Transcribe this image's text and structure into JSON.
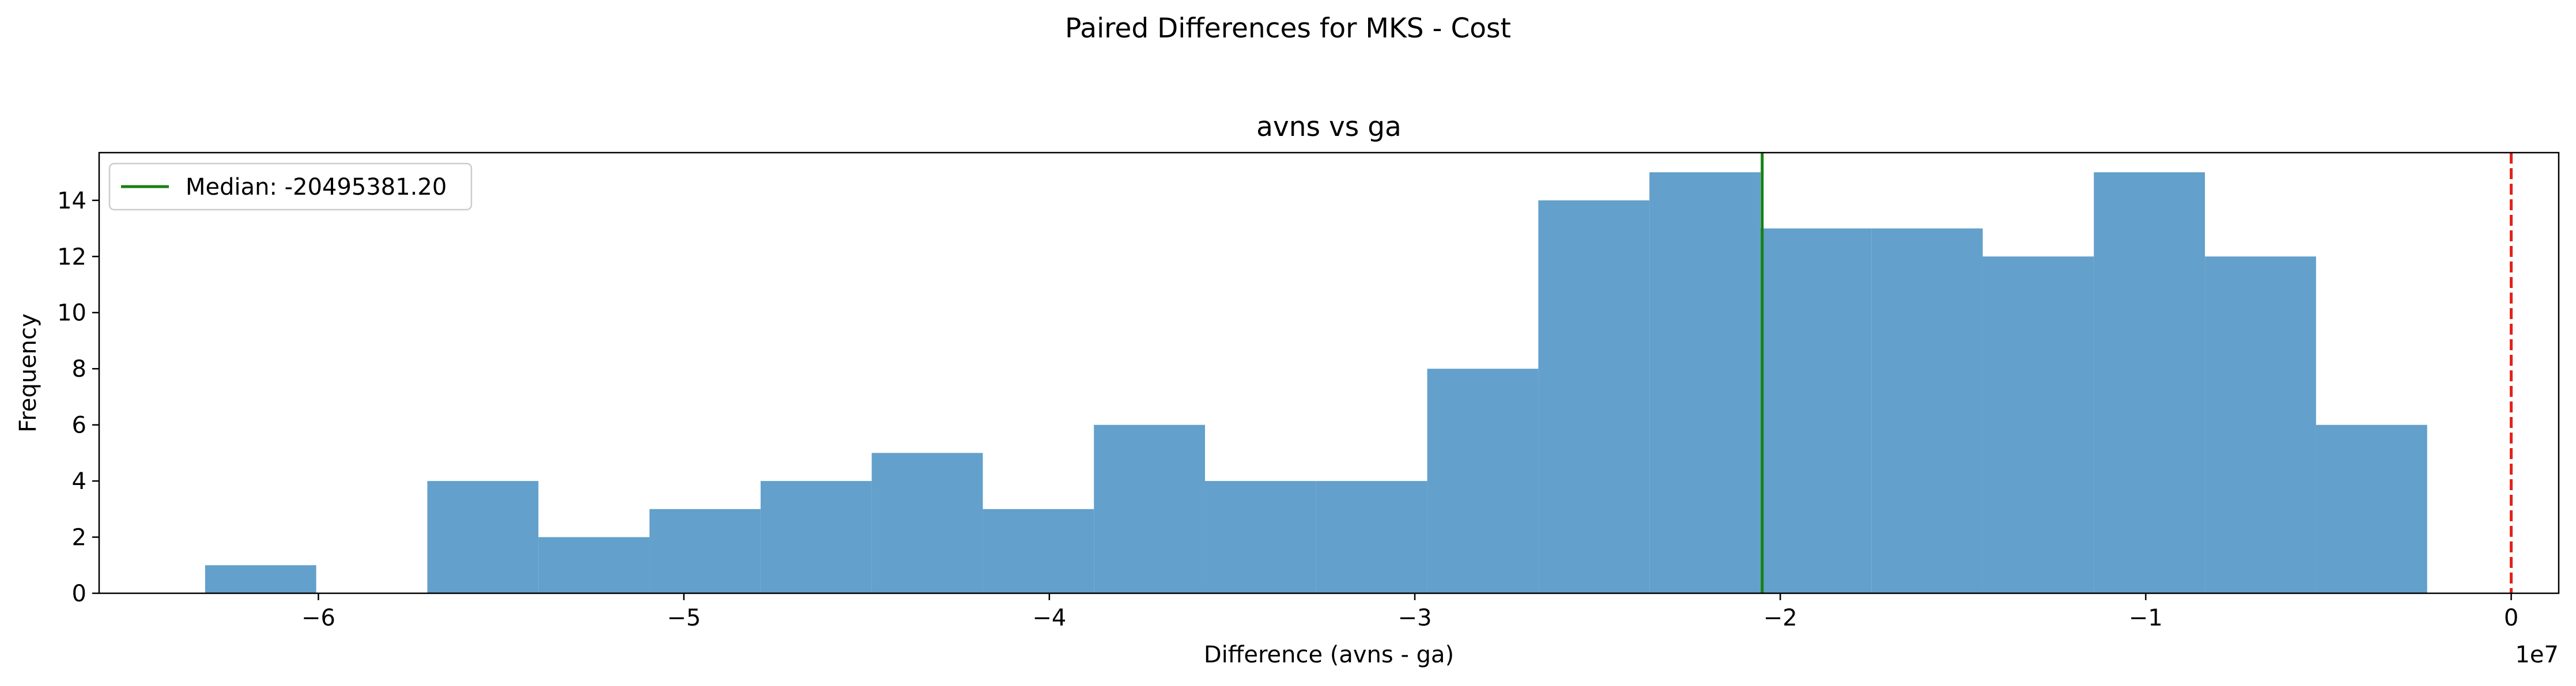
{
  "figure": {
    "suptitle": "Paired Differences for MKS - Cost"
  },
  "chart_data": {
    "type": "bar",
    "subtype": "histogram",
    "title": "avns vs ga",
    "xlabel": "Difference (avns - ga)",
    "ylabel": "Frequency",
    "x_scale_label": "1e7",
    "xlim": [
      -6.6,
      0.13
    ],
    "ylim": [
      0,
      15.7
    ],
    "xticks": [
      -6,
      -5,
      -4,
      -3,
      -2,
      -1,
      0
    ],
    "xtick_labels": [
      "−6",
      "−5",
      "−4",
      "−3",
      "−2",
      "−1",
      "0"
    ],
    "yticks": [
      0,
      2,
      4,
      6,
      8,
      10,
      12,
      14
    ],
    "ytick_labels": [
      "0",
      "2",
      "4",
      "6",
      "8",
      "10",
      "12",
      "14"
    ],
    "bin_edges": [
      -6.31,
      -6.006,
      -5.702,
      -5.398,
      -5.094,
      -4.79,
      -4.486,
      -4.182,
      -3.878,
      -3.574,
      -3.27,
      -2.966,
      -2.662,
      -2.358,
      -2.054,
      -1.75,
      -1.446,
      -1.142,
      -0.838,
      -0.534,
      -0.23
    ],
    "values": [
      1,
      0,
      4,
      2,
      3,
      4,
      5,
      3,
      6,
      4,
      4,
      8,
      14,
      15,
      13,
      13,
      12,
      15,
      12,
      6
    ],
    "bar_color": "#63a0cb",
    "median": {
      "value": -2.0495,
      "label": "Median: -20495381.20",
      "color": "#178016"
    },
    "zero_line": {
      "value": 0,
      "color": "#e2211c",
      "style": "dashed"
    },
    "legend": {
      "location": "upper-left",
      "entries": [
        "Median: -20495381.20"
      ]
    },
    "grid": false
  }
}
